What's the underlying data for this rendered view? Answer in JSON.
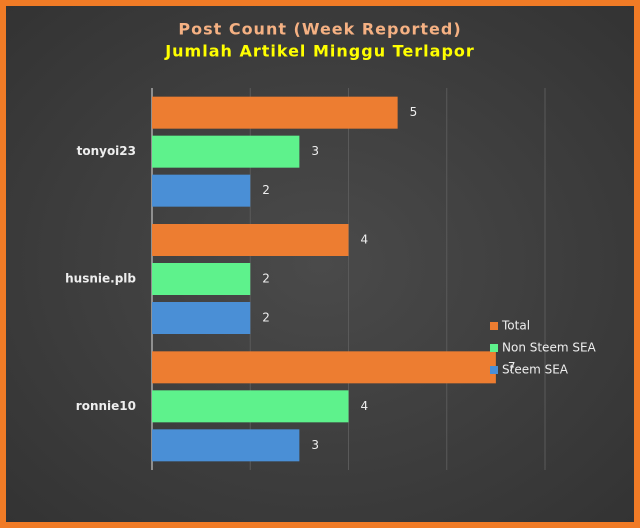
{
  "chart_data": {
    "type": "hbar",
    "title": "Post Count (Week Reported)",
    "subtitle": "Jumlah Artikel Minggu Terlapor",
    "categories": [
      "tonyoi23",
      "husnie.plb",
      "ronnie10"
    ],
    "series": [
      {
        "name": "Total",
        "color": "#ed7d31",
        "values": [
          5,
          4,
          7
        ]
      },
      {
        "name": "Non Steem SEA",
        "color": "#5ef28c",
        "values": [
          3,
          2,
          4
        ]
      },
      {
        "name": "Steem SEA",
        "color": "#4a8fd6",
        "values": [
          2,
          2,
          3
        ]
      }
    ],
    "xlim": [
      0,
      8
    ],
    "xticks": [
      0,
      2,
      4,
      6,
      8
    ],
    "grid": true,
    "legend": "lower right"
  }
}
